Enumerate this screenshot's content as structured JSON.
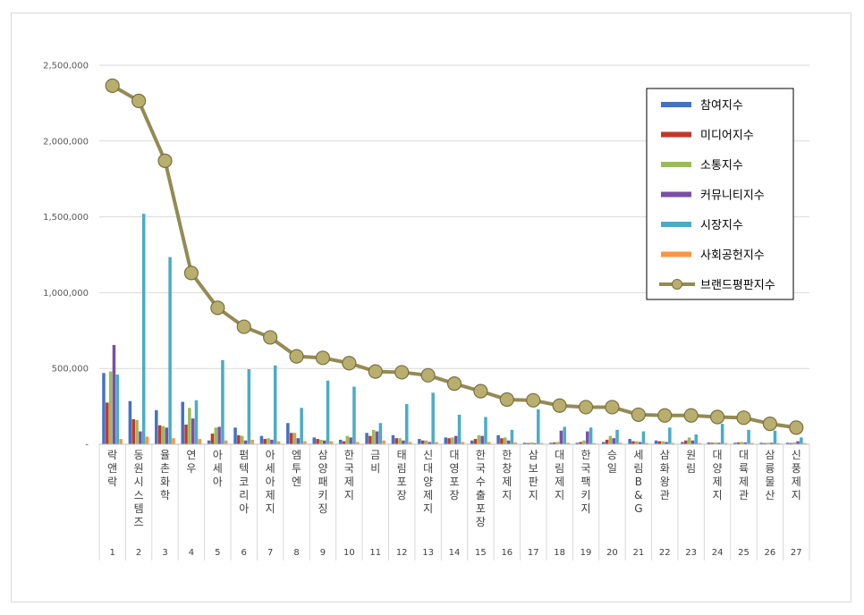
{
  "chart_data": {
    "type": "bar",
    "title": "",
    "xlabel": "",
    "ylabel": "",
    "ylim": [
      0,
      2500000
    ],
    "yticks": [
      0,
      500000,
      1000000,
      1500000,
      2000000,
      2500000
    ],
    "ytick_labels": [
      "-",
      "500,000",
      "1,000,000",
      "1,500,000",
      "2,000,000",
      "2,500,000"
    ],
    "grid": true,
    "legend_position": "top-right",
    "categories": [
      "락앤락",
      "동원시스템즈",
      "율촌화학",
      "연우",
      "아세아",
      "펌텍코리아",
      "아세아제지",
      "엠투엔",
      "삼양패키징",
      "한국제지",
      "금비",
      "태림포장",
      "신대양제지",
      "대영포장",
      "한국수출포장",
      "한창제지",
      "삼보판지",
      "대림제지",
      "한국팩키지",
      "승일",
      "세림B&G",
      "삼화왕관",
      "원림",
      "대양제지",
      "대륙제관",
      "삼륭물산",
      "신풍제지"
    ],
    "ranks": [
      "1",
      "2",
      "3",
      "4",
      "5",
      "6",
      "7",
      "8",
      "9",
      "10",
      "11",
      "12",
      "13",
      "14",
      "15",
      "16",
      "17",
      "18",
      "19",
      "20",
      "21",
      "22",
      "23",
      "24",
      "25",
      "26",
      "27"
    ],
    "series": [
      {
        "name": "참여지수",
        "color": "#4472C4",
        "values": [
          470000,
          285000,
          225000,
          280000,
          25000,
          110000,
          55000,
          140000,
          45000,
          30000,
          75000,
          60000,
          35000,
          45000,
          25000,
          60000,
          10000,
          10000,
          10000,
          15000,
          35000,
          25000,
          15000,
          12000,
          10000,
          10000,
          10000
        ]
      },
      {
        "name": "미디어지수",
        "color": "#C0392B",
        "values": [
          275000,
          165000,
          125000,
          130000,
          70000,
          60000,
          35000,
          75000,
          35000,
          20000,
          55000,
          40000,
          25000,
          40000,
          35000,
          40000,
          8000,
          12000,
          15000,
          30000,
          20000,
          20000,
          25000,
          10000,
          12000,
          8000,
          8000
        ]
      },
      {
        "name": "소통지수",
        "color": "#9BBB59",
        "values": [
          480000,
          160000,
          120000,
          240000,
          110000,
          55000,
          40000,
          75000,
          30000,
          55000,
          95000,
          40000,
          25000,
          45000,
          60000,
          45000,
          12000,
          15000,
          25000,
          55000,
          20000,
          20000,
          45000,
          12000,
          15000,
          10000,
          12000
        ]
      },
      {
        "name": "커뮤니티지수",
        "color": "#7B4FA5",
        "values": [
          655000,
          85000,
          110000,
          170000,
          115000,
          25000,
          30000,
          40000,
          25000,
          45000,
          85000,
          25000,
          15000,
          55000,
          55000,
          25000,
          8000,
          90000,
          85000,
          40000,
          15000,
          15000,
          25000,
          10000,
          12000,
          10000,
          20000
        ]
      },
      {
        "name": "시장지수",
        "color": "#4BACC6",
        "values": [
          460000,
          1520000,
          1235000,
          290000,
          555000,
          495000,
          520000,
          240000,
          420000,
          380000,
          140000,
          265000,
          340000,
          195000,
          180000,
          95000,
          230000,
          115000,
          110000,
          95000,
          85000,
          110000,
          65000,
          135000,
          95000,
          90000,
          45000
        ]
      },
      {
        "name": "사회공헌지수",
        "color": "#F79646",
        "values": [
          35000,
          50000,
          40000,
          35000,
          25000,
          30000,
          20000,
          20000,
          20000,
          15000,
          25000,
          15000,
          15000,
          15000,
          15000,
          12000,
          8000,
          10000,
          8000,
          10000,
          8000,
          8000,
          8000,
          8000,
          8000,
          8000,
          8000
        ]
      },
      {
        "name": "브랜드평판지수",
        "color": "#948A54",
        "type": "line",
        "values": [
          2365000,
          2265000,
          1870000,
          1130000,
          900000,
          775000,
          705000,
          580000,
          570000,
          535000,
          480000,
          475000,
          455000,
          400000,
          350000,
          295000,
          290000,
          255000,
          245000,
          245000,
          195000,
          190000,
          190000,
          180000,
          175000,
          135000,
          110000
        ]
      }
    ]
  }
}
